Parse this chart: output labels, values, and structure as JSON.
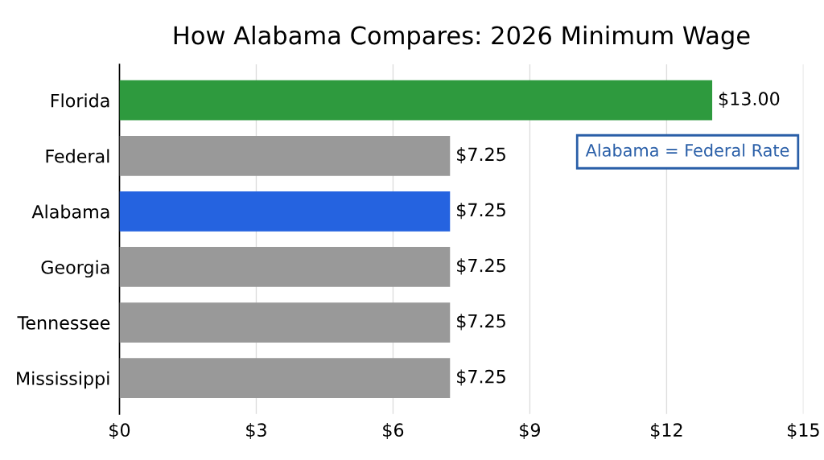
{
  "chart_data": {
    "type": "bar",
    "orientation": "horizontal",
    "title": "How Alabama Compares: 2026 Minimum Wage",
    "categories": [
      "Florida",
      "Federal",
      "Alabama",
      "Georgia",
      "Tennessee",
      "Mississippi"
    ],
    "values": [
      13.0,
      7.25,
      7.25,
      7.25,
      7.25,
      7.25
    ],
    "colors": [
      "#2e9a3e",
      "#999999",
      "#2563e0",
      "#999999",
      "#999999",
      "#999999"
    ],
    "value_labels": [
      "$13.00",
      "$7.25",
      "$7.25",
      "$7.25",
      "$7.25",
      "$7.25"
    ],
    "xlim": [
      0,
      15
    ],
    "xticks": [
      {
        "value": 0,
        "label": "$0"
      },
      {
        "value": 3,
        "label": "$3"
      },
      {
        "value": 6,
        "label": "$6"
      },
      {
        "value": 9,
        "label": "$9"
      },
      {
        "value": 12,
        "label": "$12"
      },
      {
        "value": 15,
        "label": "$15"
      }
    ],
    "grid": "x",
    "annotations": [
      "Alabama = Federal Rate"
    ]
  }
}
